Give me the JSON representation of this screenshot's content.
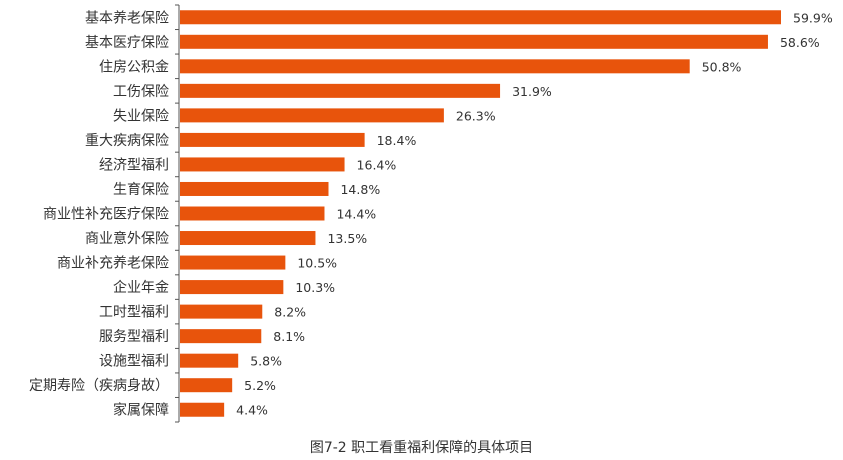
{
  "colors": {
    "bar": "#E8540C",
    "axis": "#555555",
    "text": "#333333"
  },
  "caption": "图7-2 职工看重福利保障的具体项目",
  "chart_data": {
    "type": "bar",
    "orientation": "horizontal",
    "categories": [
      "基本养老保险",
      "基本医疗保险",
      "住房公积金",
      "工伤保险",
      "失业保险",
      "重大疾病保险",
      "经济型福利",
      "生育保险",
      "商业性补充医疗保险",
      "商业意外保险",
      "商业补充养老保险",
      "企业年金",
      "工时型福利",
      "服务型福利",
      "设施型福利",
      "定期寿险（疾病身故）",
      "家属保障"
    ],
    "values": [
      59.9,
      58.6,
      50.8,
      31.9,
      26.3,
      18.4,
      16.4,
      14.8,
      14.4,
      13.5,
      10.5,
      10.3,
      8.2,
      8.1,
      5.8,
      5.2,
      4.4
    ],
    "value_labels": [
      "59.9%",
      "58.6%",
      "50.8%",
      "31.9%",
      "26.3%",
      "18.4%",
      "16.4%",
      "14.8%",
      "14.4%",
      "13.5%",
      "10.5%",
      "10.3%",
      "8.2%",
      "8.1%",
      "5.8%",
      "5.2%",
      "4.4%"
    ],
    "title": "图7-2 职工看重福利保障的具体项目",
    "xlabel": "",
    "ylabel": "",
    "xlim": [
      0,
      60
    ],
    "grid": false,
    "legend": "none"
  }
}
